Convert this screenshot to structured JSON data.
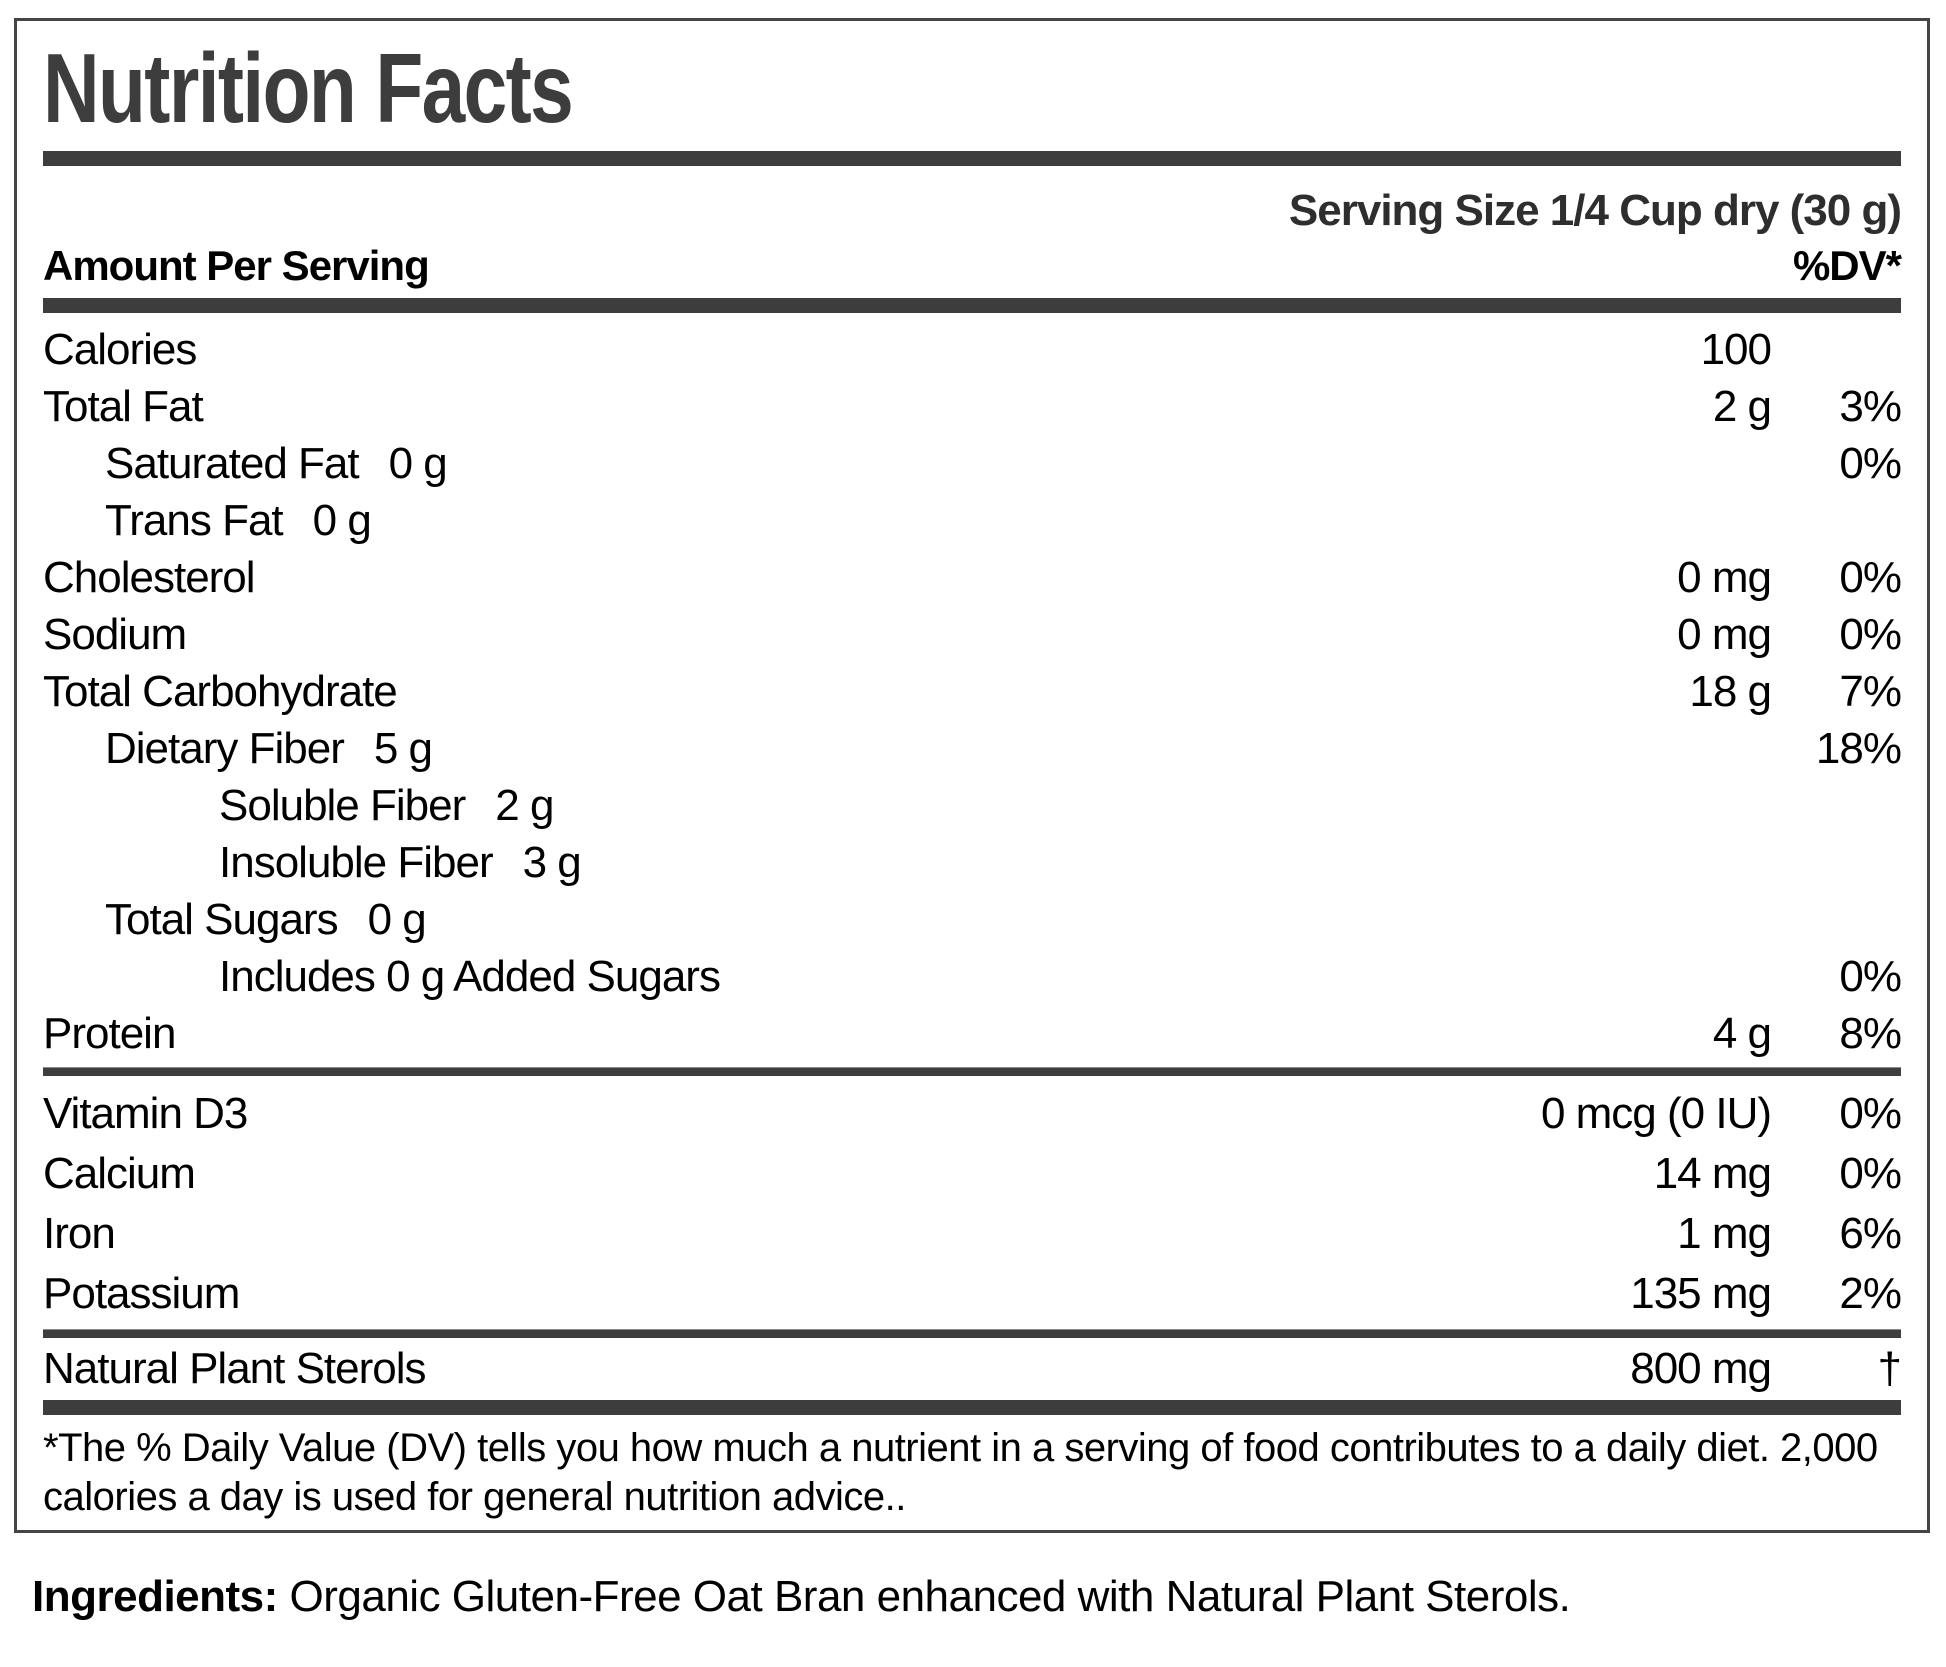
{
  "title": "Nutrition Facts",
  "serving_size": "Serving Size 1/4 Cup dry (30 g)",
  "header": {
    "amount_per_serving": "Amount Per Serving",
    "dv": "%DV*"
  },
  "main_rows": [
    {
      "label": "Calories",
      "inline_amount": "",
      "amount": "100",
      "dv": ""
    },
    {
      "label": "Total Fat",
      "inline_amount": "",
      "amount": "2 g",
      "dv": "3%"
    },
    {
      "label": "Saturated Fat",
      "inline_amount": "0 g",
      "amount": "",
      "dv": "0%"
    },
    {
      "label": "Trans Fat",
      "inline_amount": "0 g",
      "amount": "",
      "dv": ""
    },
    {
      "label": "Cholesterol",
      "inline_amount": "",
      "amount": "0 mg",
      "dv": "0%"
    },
    {
      "label": "Sodium",
      "inline_amount": "",
      "amount": "0 mg",
      "dv": "0%"
    },
    {
      "label": "Total Carbohydrate",
      "inline_amount": "",
      "amount": "18 g",
      "dv": "7%"
    },
    {
      "label": "Dietary Fiber",
      "inline_amount": "5 g",
      "amount": "",
      "dv": "18%"
    },
    {
      "label": "Soluble Fiber",
      "inline_amount": "2 g",
      "amount": "",
      "dv": ""
    },
    {
      "label": "Insoluble Fiber",
      "inline_amount": "3 g",
      "amount": "",
      "dv": ""
    },
    {
      "label": "Total Sugars",
      "inline_amount": "0 g",
      "amount": "",
      "dv": ""
    },
    {
      "label": "Includes 0 g Added Sugars",
      "inline_amount": "",
      "amount": "",
      "dv": "0%"
    },
    {
      "label": "Protein",
      "inline_amount": "",
      "amount": "4 g",
      "dv": "8%"
    }
  ],
  "vitamin_rows": [
    {
      "label": "Vitamin D3",
      "amount": "0 mcg (0 IU)",
      "dv": "0%"
    },
    {
      "label": "Calcium",
      "amount": "14 mg",
      "dv": "0%"
    },
    {
      "label": "Iron",
      "amount": "1 mg",
      "dv": "6%"
    },
    {
      "label": "Potassium",
      "amount": "135 mg",
      "dv": "2%"
    }
  ],
  "sterol_row": {
    "label": "Natural Plant Sterols",
    "amount": "800 mg",
    "dv": "†"
  },
  "footnote": "*The % Daily Value (DV) tells you how much a nutrient in a serving of food contributes to a daily diet. 2,000 calories a day is used for general nutrition advice..",
  "ingredients": {
    "label": "Ingredients:",
    "text": " Organic Gluten-Free Oat Bran enhanced with Natural Plant Sterols."
  },
  "colors": {
    "rule": "#3d3d3d",
    "title": "#3d3d3d",
    "text": "#000000"
  }
}
